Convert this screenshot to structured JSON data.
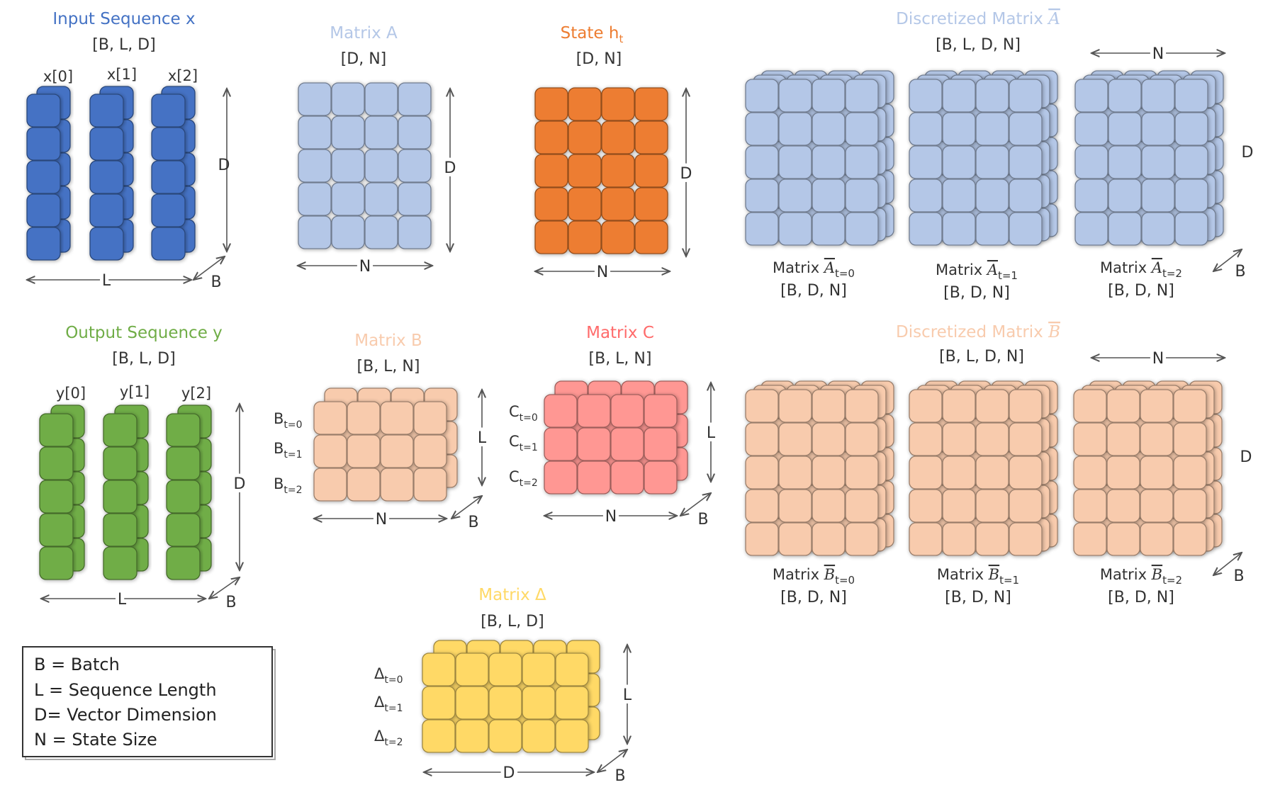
{
  "colors": {
    "blue": "#4472c4",
    "light_blue": "#b4c7e7",
    "orange": "#ed7d31",
    "peach": "#f8cbad",
    "salmon": "#ff9793",
    "yellow": "#ffd966",
    "green": "#70ad47",
    "title_blue": "#4472c4",
    "title_light_blue": "#b4c7e7",
    "title_orange": "#ed7d31",
    "title_green": "#70ad47",
    "title_peach": "#f8cbad",
    "title_red": "#ff6b6b",
    "title_yellow": "#ffd966"
  },
  "input": {
    "title": "Input Sequence x",
    "shape": "[B, L, D]",
    "items": [
      "x[0]",
      "x[1]",
      "x[2]"
    ],
    "axis_d": "D",
    "axis_l": "L",
    "axis_b": "B"
  },
  "output": {
    "title": "Output Sequence y",
    "shape": "[B, L, D]",
    "items": [
      "y[0]",
      "y[1]",
      "y[2]"
    ],
    "axis_d": "D",
    "axis_l": "L",
    "axis_b": "B"
  },
  "matrix_a": {
    "title": "Matrix A",
    "shape": "[D, N]",
    "axis_d": "D",
    "axis_n": "N"
  },
  "state": {
    "title_main": "State h",
    "title_sub": "t",
    "shape": "[D, N]",
    "axis_d": "D",
    "axis_n": "N"
  },
  "disc_a": {
    "title_main": "Discretized Matrix ",
    "title_sym": "A",
    "shape": "[B, L, D, N]",
    "axis_n": "N",
    "axis_d": "D",
    "axis_b": "B",
    "items": [
      {
        "prefix": "Matrix ",
        "sym": "A",
        "sub": "t=0",
        "shape": "[B, D, N]"
      },
      {
        "prefix": "Matrix ",
        "sym": "A",
        "sub": "t=1",
        "shape": "[B, D, N]"
      },
      {
        "prefix": "Matrix ",
        "sym": "A",
        "sub": "t=2",
        "shape": "[B, D, N]"
      }
    ]
  },
  "disc_b": {
    "title_main": "Discretized Matrix ",
    "title_sym": "B",
    "shape": "[B, L, D, N]",
    "axis_n": "N",
    "axis_d": "D",
    "axis_b": "B",
    "items": [
      {
        "prefix": "Matrix ",
        "sym": "B",
        "sub": "t=0",
        "shape": "[B, D, N]"
      },
      {
        "prefix": "Matrix ",
        "sym": "B",
        "sub": "t=1",
        "shape": "[B, D, N]"
      },
      {
        "prefix": "Matrix ",
        "sym": "B",
        "sub": "t=2",
        "shape": "[B, D, N]"
      }
    ]
  },
  "matrix_b": {
    "title": "Matrix B",
    "shape": "[B, L, N]",
    "rows": [
      {
        "main": "B",
        "sub": "t=0"
      },
      {
        "main": "B",
        "sub": "t=1"
      },
      {
        "main": "B",
        "sub": "t=2"
      }
    ],
    "axis_l": "L",
    "axis_n": "N",
    "axis_b": "B"
  },
  "matrix_c": {
    "title": "Matrix C",
    "shape": "[B, L, N]",
    "rows": [
      {
        "main": "C",
        "sub": "t=0"
      },
      {
        "main": "C",
        "sub": "t=1"
      },
      {
        "main": "C",
        "sub": "t=2"
      }
    ],
    "axis_l": "L",
    "axis_n": "N",
    "axis_b": "B"
  },
  "matrix_delta": {
    "title": "Matrix Δ",
    "shape": "[B, L, D]",
    "rows": [
      {
        "main": "Δ",
        "sub": "t=0"
      },
      {
        "main": "Δ",
        "sub": "t=1"
      },
      {
        "main": "Δ",
        "sub": "t=2"
      }
    ],
    "axis_l": "L",
    "axis_d": "D",
    "axis_b": "B"
  },
  "legend": {
    "lines": [
      "B = Batch",
      "L = Sequence Length",
      "D= Vector Dimension",
      "N = State Size"
    ]
  }
}
